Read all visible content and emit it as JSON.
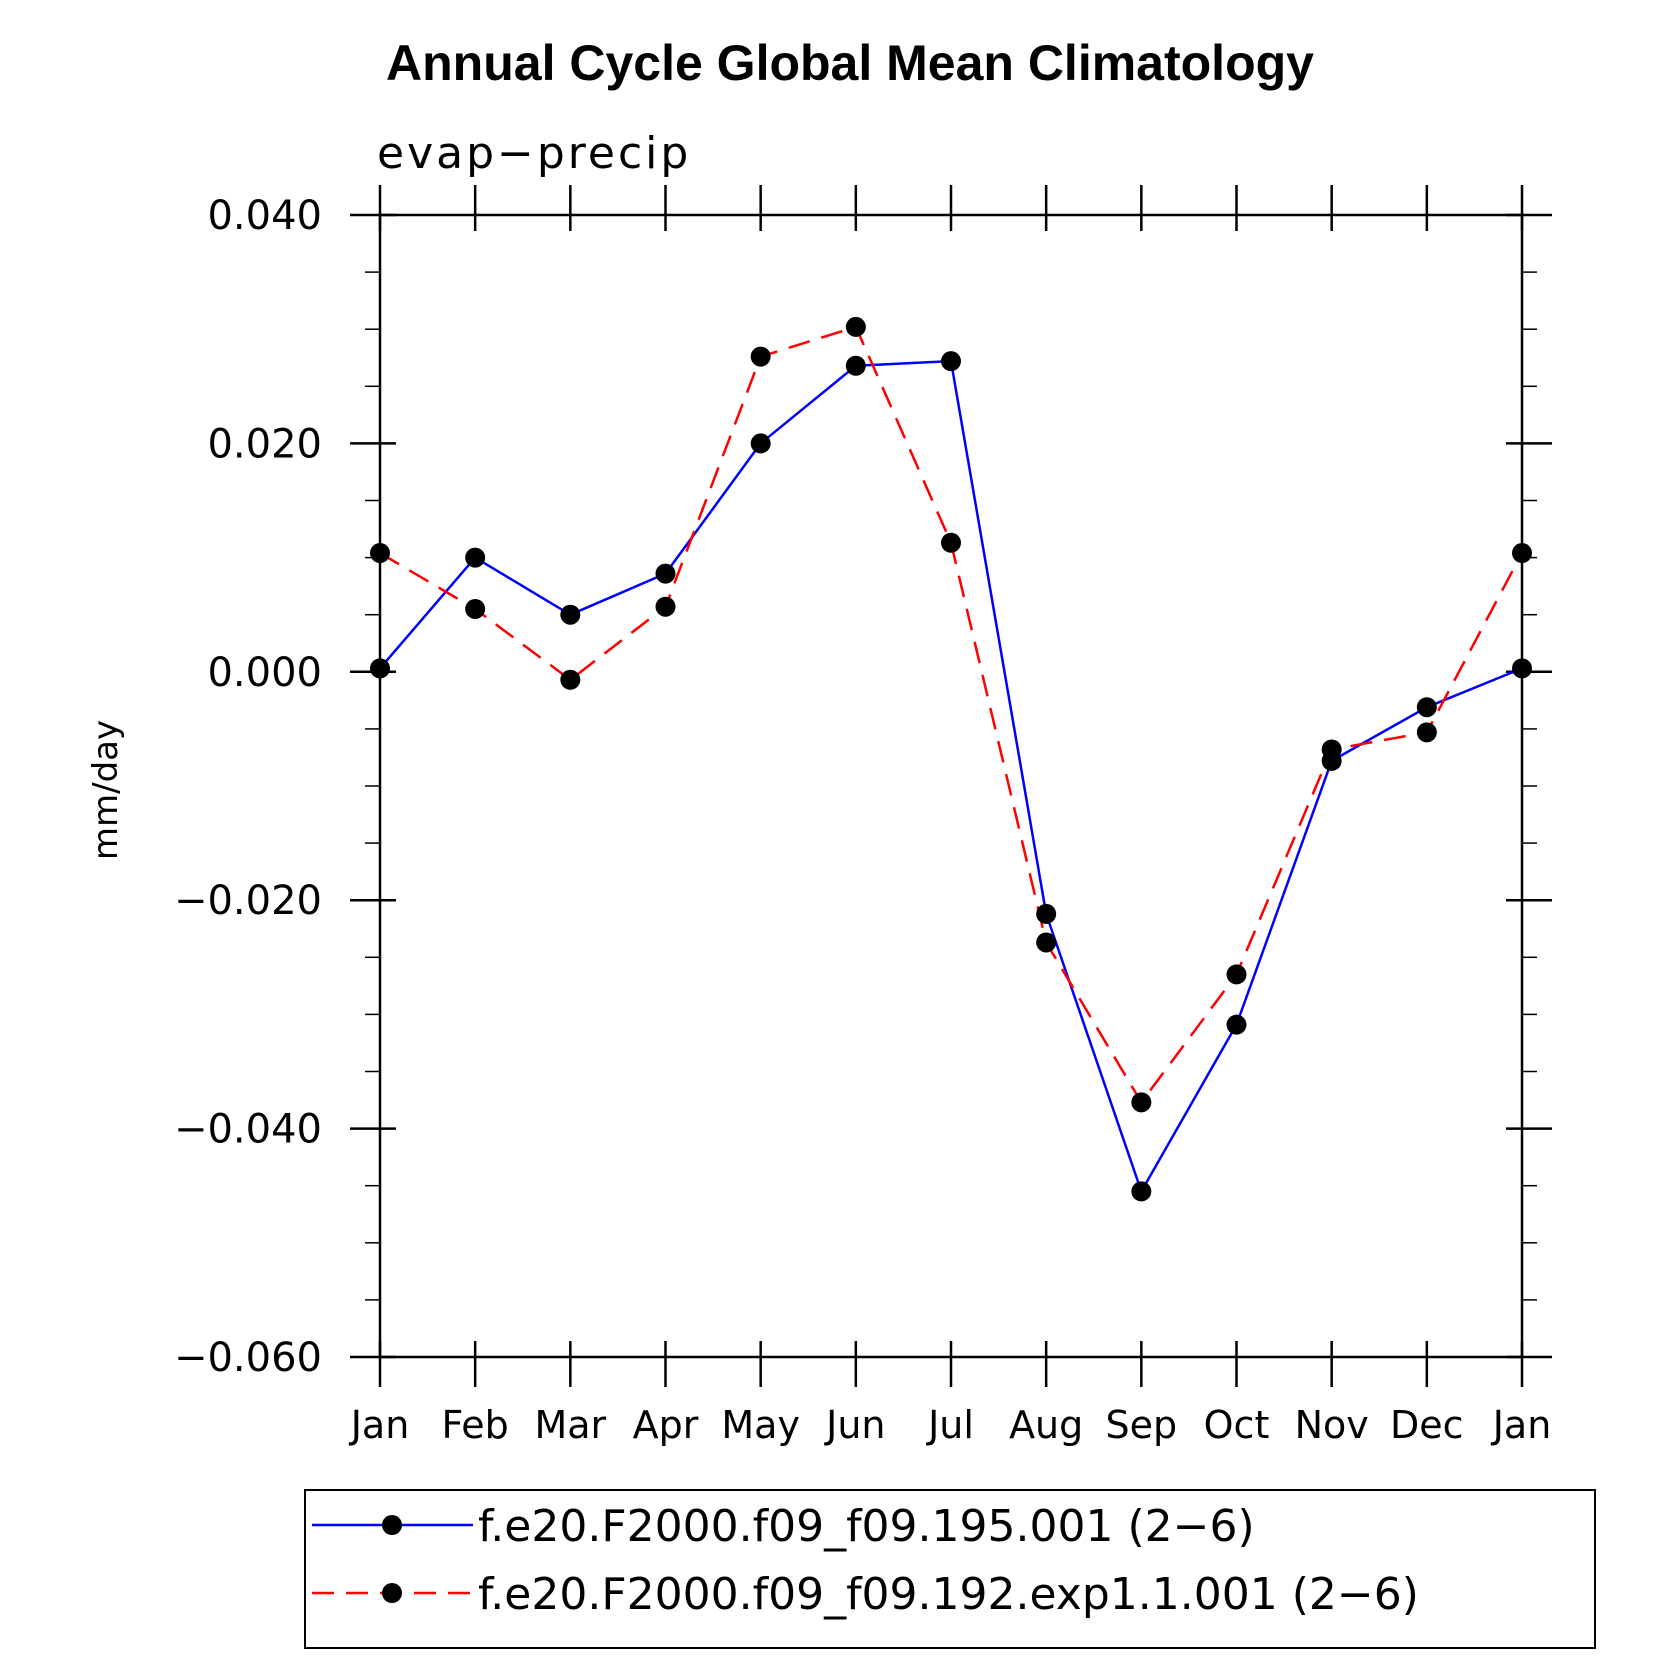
{
  "chart_data": {
    "type": "line",
    "title": "Annual Cycle Global Mean Climatology",
    "subtitle": "evap−precip",
    "xlabel": "",
    "ylabel": "mm/day",
    "categories": [
      "Jan",
      "Feb",
      "Mar",
      "Apr",
      "May",
      "Jun",
      "Jul",
      "Aug",
      "Sep",
      "Oct",
      "Nov",
      "Dec",
      "Jan"
    ],
    "ylim": [
      -0.06,
      0.04
    ],
    "yticks": [
      0.04,
      0.02,
      0.0,
      -0.02,
      -0.04,
      -0.06
    ],
    "ytick_labels": [
      "0.040",
      "0.020",
      "0.000",
      "−0.020",
      "−0.040",
      "−0.060"
    ],
    "yminor_step": 0.005,
    "grid": false,
    "legend_position": "bottom",
    "series": [
      {
        "name": "f.e20.F2000.f09_f09.195.001 (2−6)",
        "color": "#0000ff",
        "dash": "solid",
        "marker": "dot",
        "values": [
          0.0003,
          0.01,
          0.005,
          0.0086,
          0.02,
          0.0268,
          0.0272,
          -0.0212,
          -0.0455,
          -0.0309,
          -0.0078,
          -0.0031,
          0.0003
        ]
      },
      {
        "name": "f.e20.F2000.f09_f09.192.exp1.1.001 (2−6)",
        "color": "#ff0000",
        "dash": "dashed",
        "marker": "dot",
        "values": [
          0.0104,
          0.0055,
          -0.0007,
          0.0057,
          0.0276,
          0.0302,
          0.0113,
          -0.0237,
          -0.0377,
          -0.0265,
          -0.0068,
          -0.0053,
          0.0104
        ]
      }
    ]
  }
}
